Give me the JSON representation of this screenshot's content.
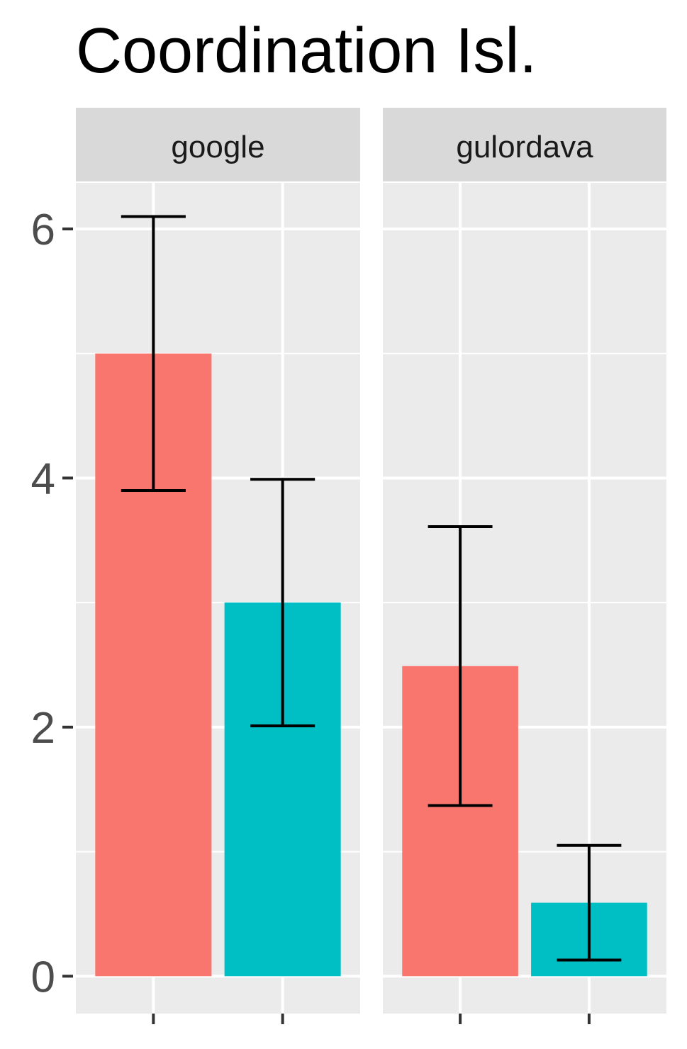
{
  "chart_data": {
    "type": "bar",
    "title": "Coordination Isl.",
    "colors": [
      "#F8766D",
      "#00BFC4"
    ],
    "categories": [
      null,
      null
    ],
    "ylim": [
      -0.3,
      6.37
    ],
    "yticks": [
      0,
      2,
      4,
      6
    ],
    "minor_yticks": [
      1,
      3,
      5
    ],
    "grid": true,
    "facets": [
      {
        "label": "google",
        "values": [
          5.0,
          3.0
        ],
        "errors": [
          1.1,
          0.99
        ]
      },
      {
        "label": "gulordava",
        "values": [
          2.49,
          0.59
        ],
        "errors": [
          1.12,
          0.46
        ]
      }
    ]
  }
}
